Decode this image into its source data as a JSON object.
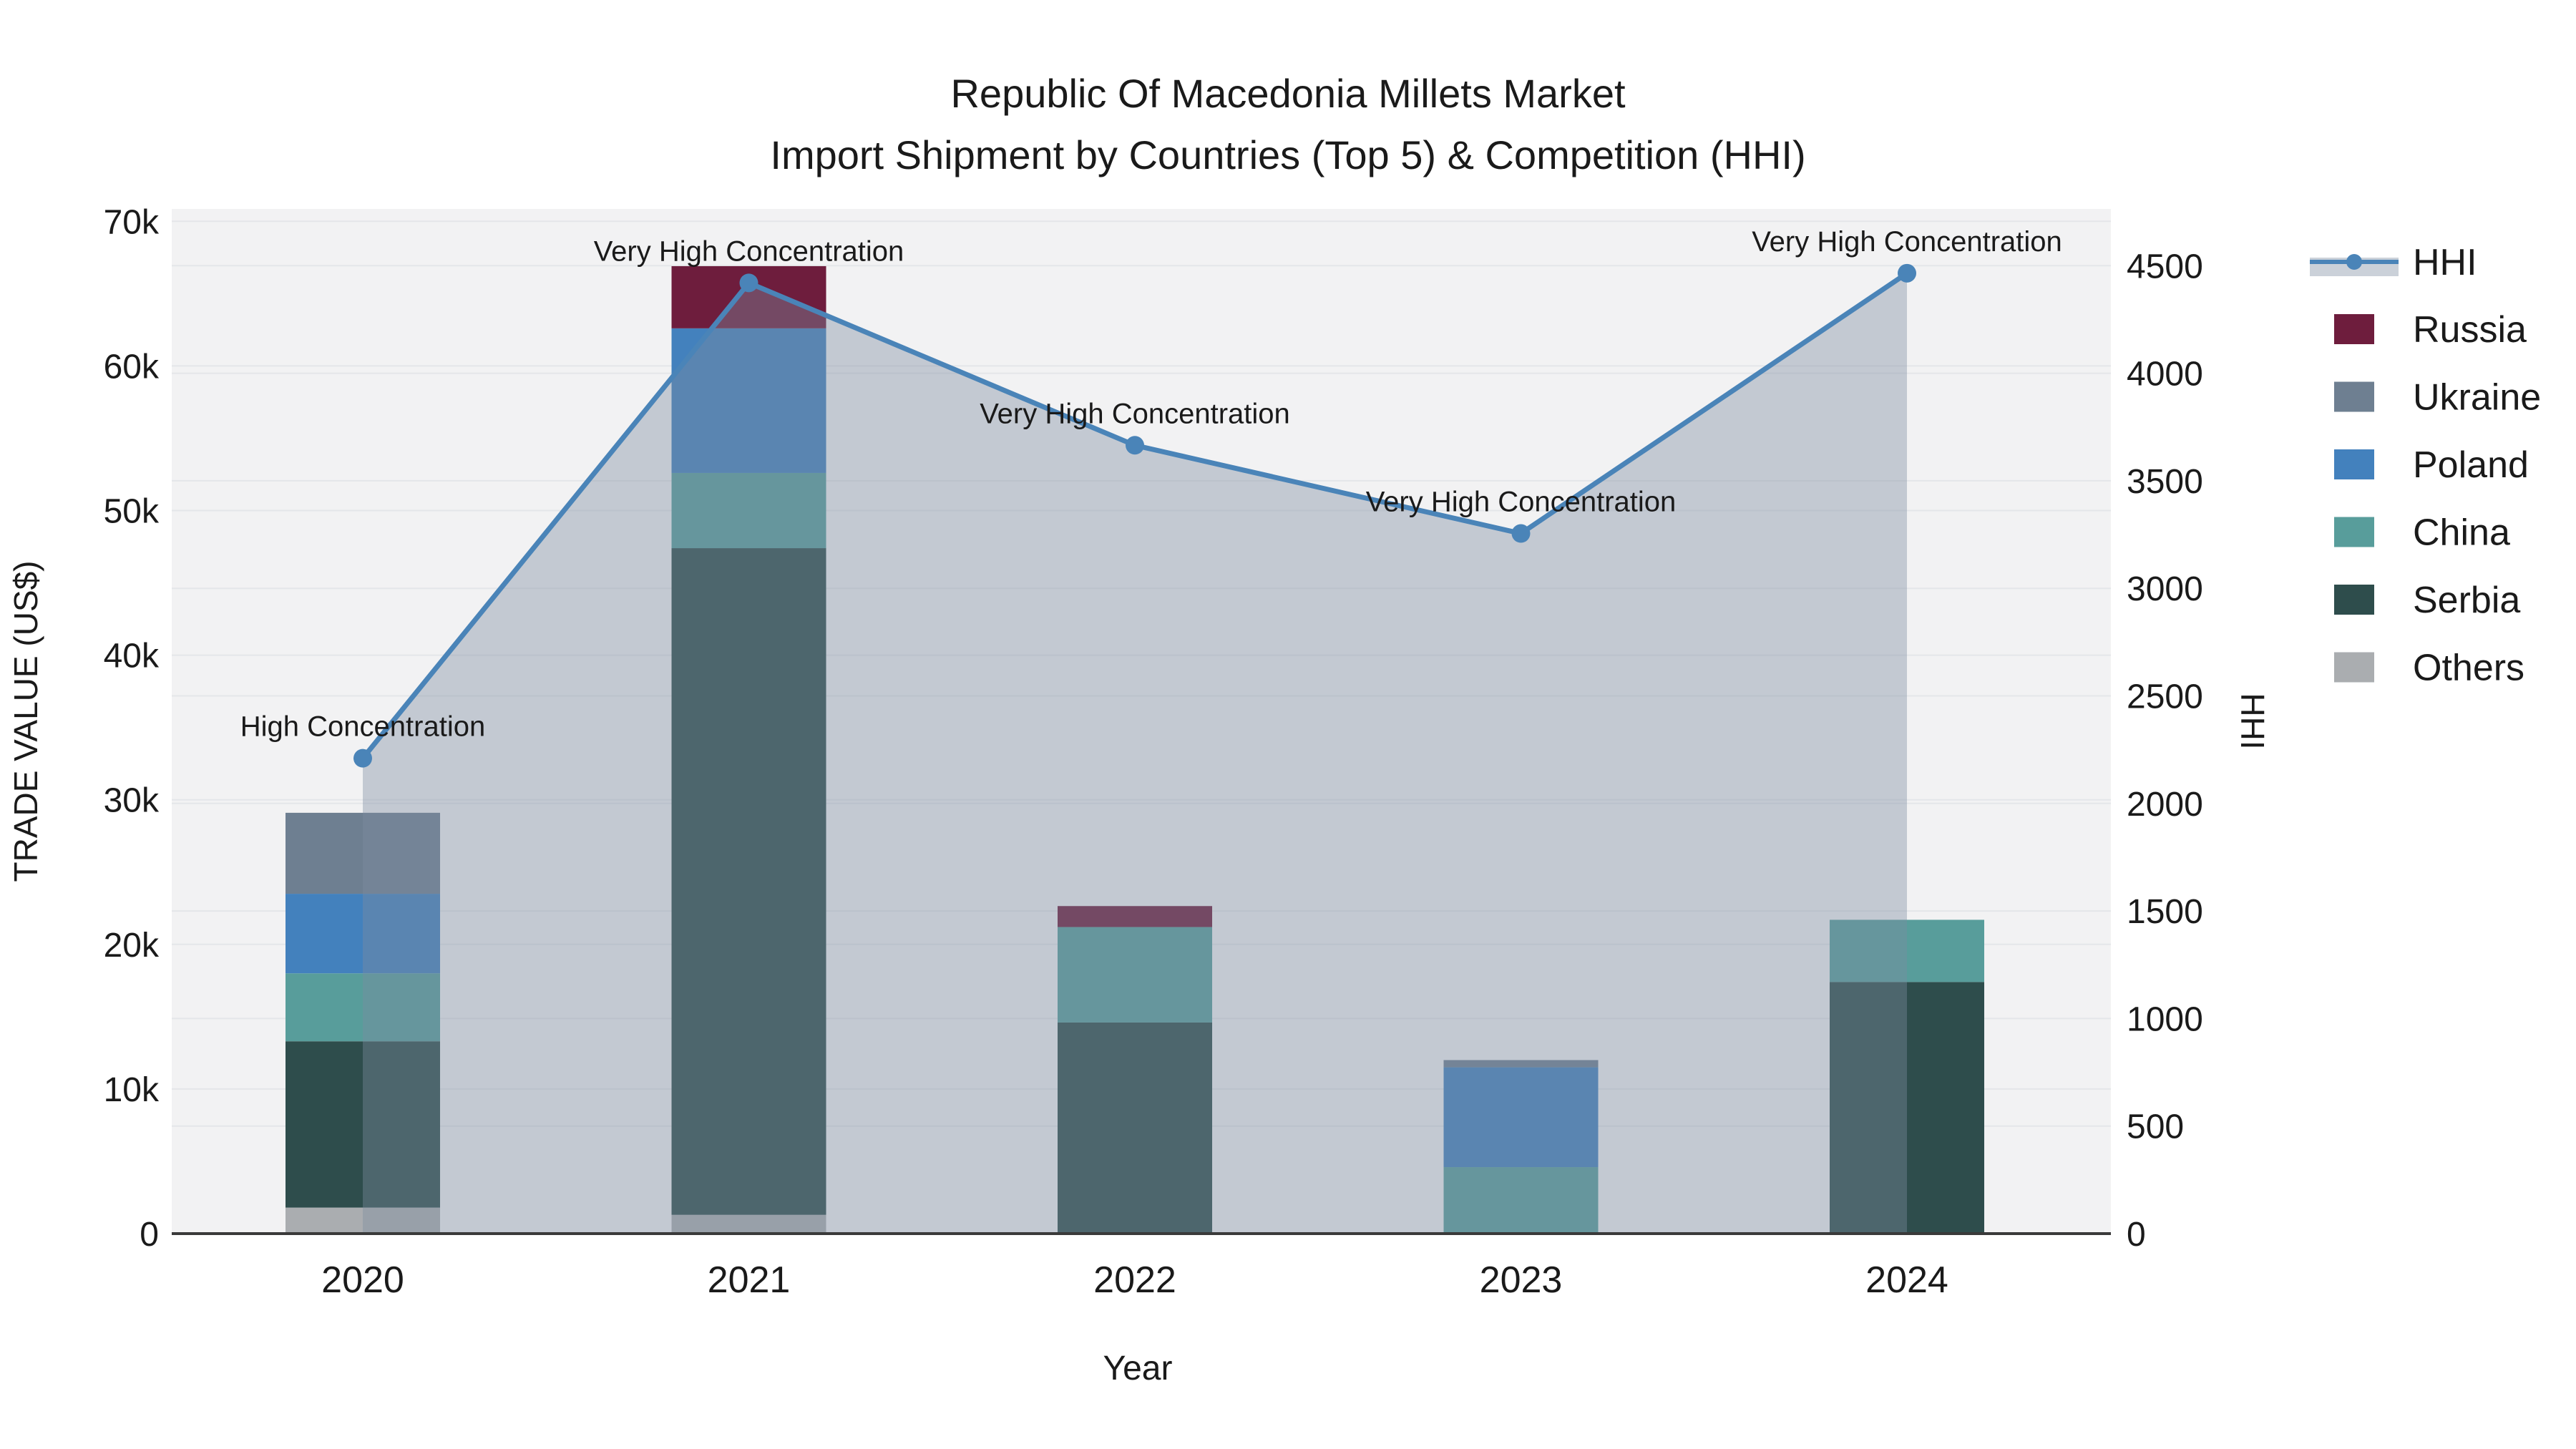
{
  "figure": {
    "title_line1": "Republic Of Macedonia Millets Market",
    "title_line2": "Import Shipment by Countries (Top 5) & Competition (HHI)"
  },
  "colors": {
    "plot_bg": "#f2f2f3",
    "grid": "#e4e6e9",
    "axis_line": "#3a3a3a",
    "text": "#1a1a1a"
  },
  "chart_data": {
    "type": "stacked_bar_with_line_dual_axis",
    "title": "Republic Of Macedonia Millets Market — Import Shipment by Countries (Top 5) & Competition (HHI)",
    "x": [
      2020,
      2021,
      2022,
      2023,
      2024
    ],
    "xlabel": "Year",
    "ylabel_left": "TRADE VALUE (US$)",
    "ylabel_right": "HHI",
    "ylim_left": [
      0,
      70000
    ],
    "ylim_right": [
      0,
      4500
    ],
    "grid": true,
    "legend_position": "right",
    "left_ticks": [
      {
        "value": 0,
        "label": "0"
      },
      {
        "value": 10000,
        "label": "10k"
      },
      {
        "value": 20000,
        "label": "20k"
      },
      {
        "value": 30000,
        "label": "30k"
      },
      {
        "value": 40000,
        "label": "40k"
      },
      {
        "value": 50000,
        "label": "50k"
      },
      {
        "value": 60000,
        "label": "60k"
      },
      {
        "value": 70000,
        "label": "70k"
      }
    ],
    "right_ticks": [
      {
        "value": 0,
        "label": "0"
      },
      {
        "value": 500,
        "label": "500"
      },
      {
        "value": 1000,
        "label": "1000"
      },
      {
        "value": 1500,
        "label": "1500"
      },
      {
        "value": 2000,
        "label": "2000"
      },
      {
        "value": 2500,
        "label": "2500"
      },
      {
        "value": 3000,
        "label": "3000"
      },
      {
        "value": 3500,
        "label": "3500"
      },
      {
        "value": 4000,
        "label": "4000"
      },
      {
        "value": 4500,
        "label": "4500"
      }
    ],
    "series": [
      {
        "name": "Russia",
        "color": "#6e1d3d",
        "values": [
          0,
          4300,
          1450,
          0,
          0
        ]
      },
      {
        "name": "Ukraine",
        "color": "#6e7f91",
        "values": [
          5600,
          0,
          0,
          500,
          0
        ]
      },
      {
        "name": "Poland",
        "color": "#4381bd",
        "values": [
          5500,
          10000,
          0,
          6900,
          0
        ]
      },
      {
        "name": "China",
        "color": "#589d9b",
        "values": [
          4700,
          5200,
          6600,
          4600,
          4300
        ]
      },
      {
        "name": "Serbia",
        "color": "#2e4d4c",
        "values": [
          11500,
          46100,
          14600,
          0,
          17400
        ]
      },
      {
        "name": "Others",
        "color": "#aaadb0",
        "values": [
          1800,
          1300,
          0,
          0,
          0
        ]
      }
    ],
    "stack_order": [
      "Others",
      "Serbia",
      "China",
      "Poland",
      "Ukraine",
      "Russia"
    ],
    "bar_totals": [
      29100,
      66900,
      22650,
      12000,
      21700
    ],
    "hhi": {
      "name": "HHI",
      "color": "#4a84b8",
      "fill": "rgba(124,139,161,0.40)",
      "values": [
        2210,
        4420,
        3665,
        3255,
        4465
      ]
    },
    "annotations": [
      "High Concentration",
      "Very High Concentration",
      "Very High Concentration",
      "Very High Concentration",
      "Very High Concentration"
    ]
  }
}
